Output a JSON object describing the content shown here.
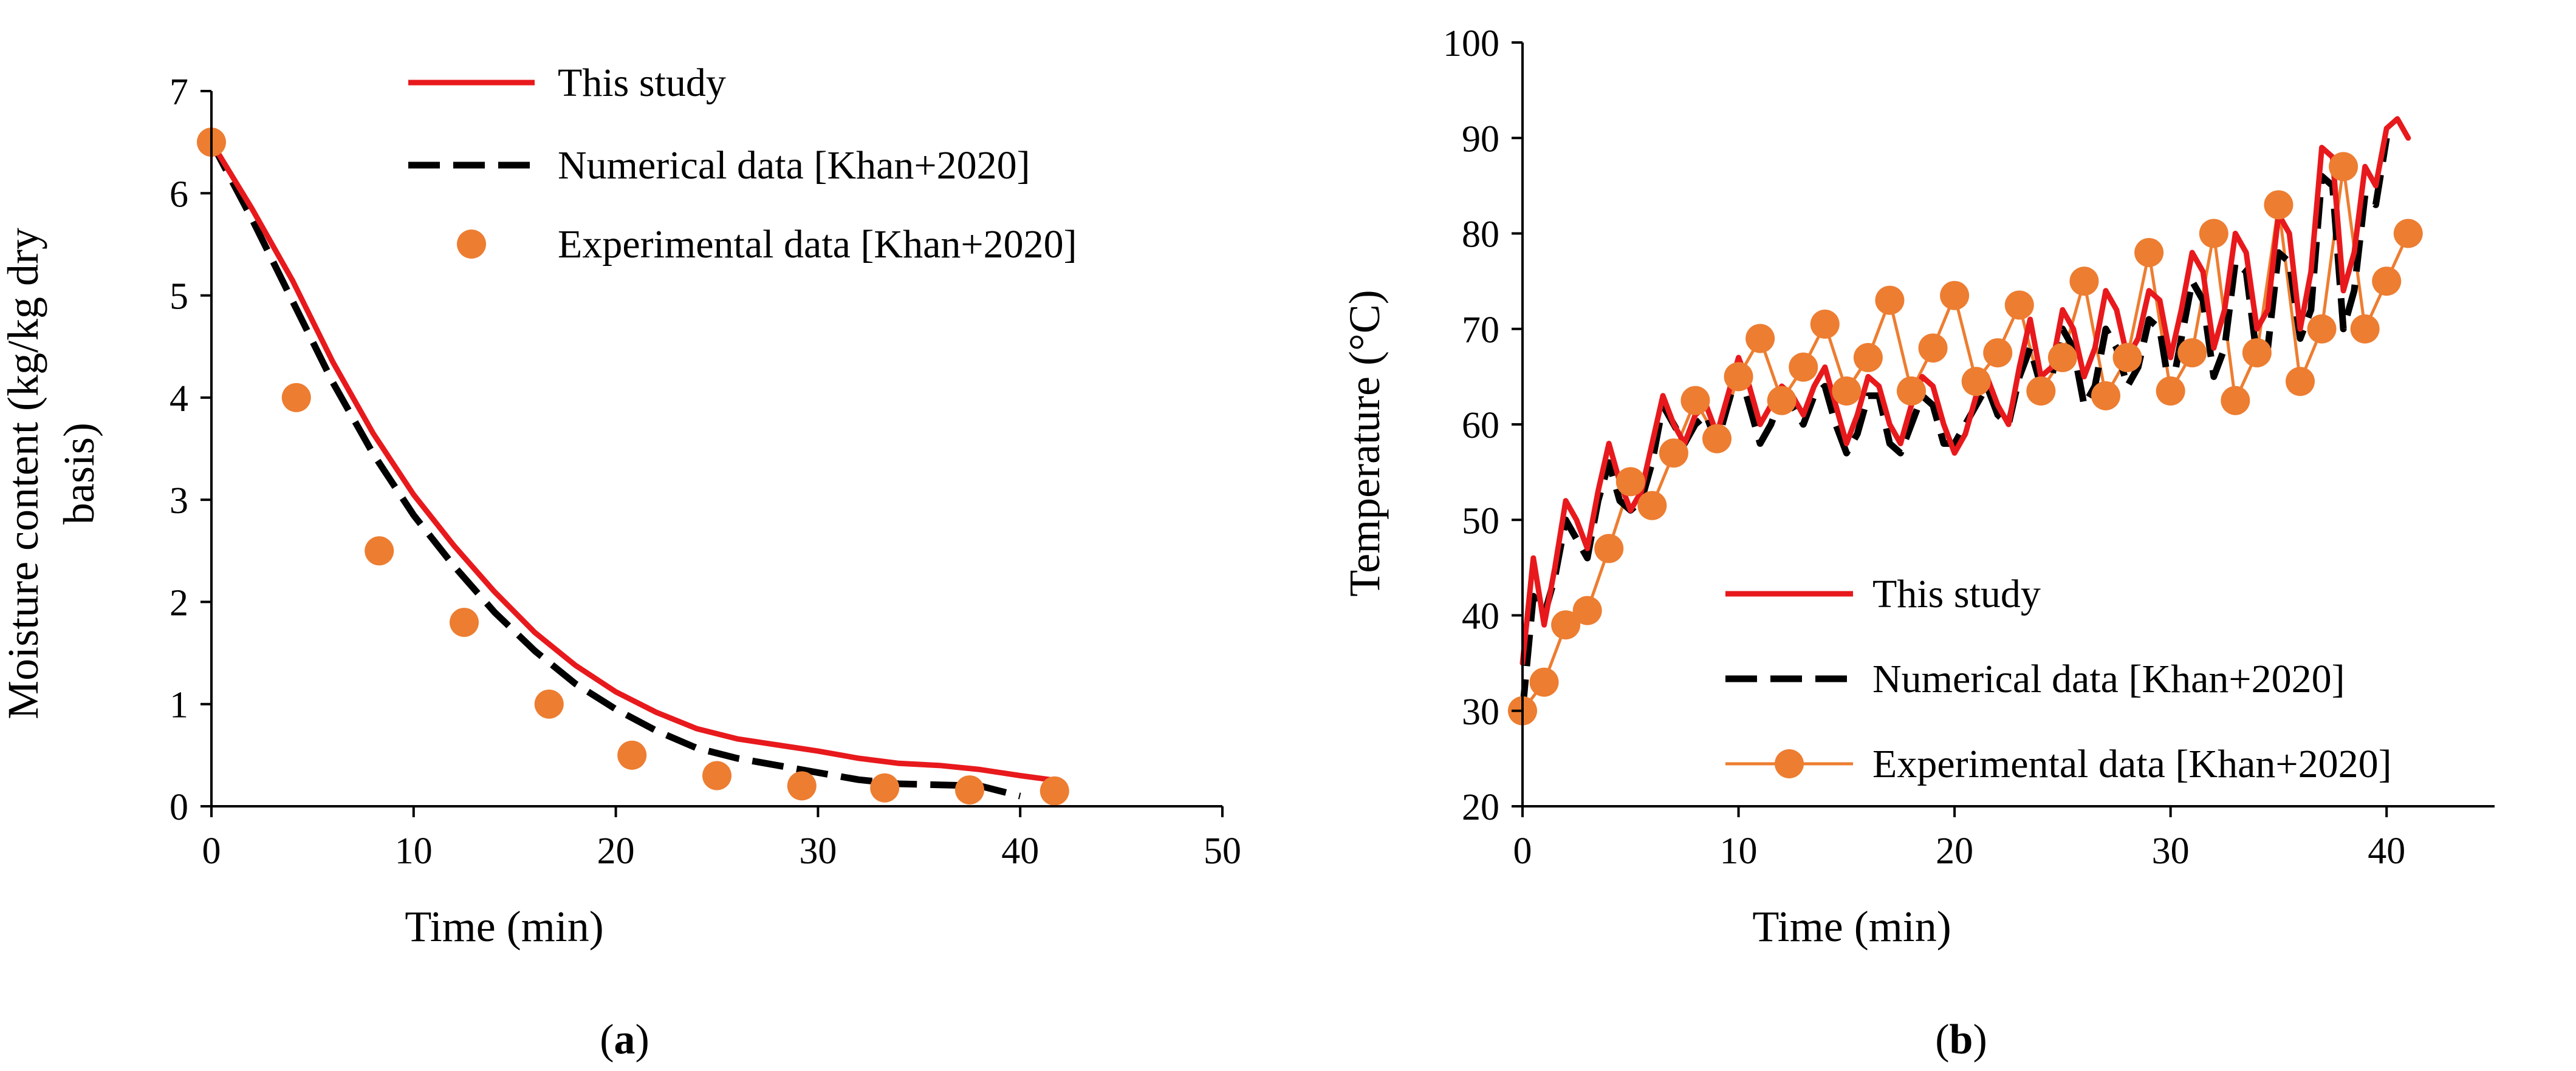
{
  "colors": {
    "this_study": "#e8191c",
    "numerical": "#000000",
    "experimental": "#ed7d31",
    "axis": "#000000"
  },
  "chart_data": [
    {
      "type": "line",
      "panel": "a",
      "panel_label": "(a)",
      "panel_label_parts": {
        "open": "(",
        "letter": "a",
        "close": ")"
      },
      "xlabel": "Time (min)",
      "ylabel_lines": [
        "Moisture content (kg/kg dry",
        "basis)"
      ],
      "xlim": [
        0,
        50
      ],
      "ylim": [
        0,
        7
      ],
      "xticks": [
        0,
        10,
        20,
        30,
        40,
        50
      ],
      "yticks": [
        0,
        1,
        2,
        3,
        4,
        5,
        6,
        7
      ],
      "grid": false,
      "legend_position": "top-right",
      "series": [
        {
          "name": "This study",
          "style": "solid-line",
          "color": "#e8191c",
          "x": [
            0,
            2,
            4,
            6,
            8,
            10,
            12,
            14,
            16,
            18,
            20,
            22,
            24,
            26,
            28,
            30,
            32,
            34,
            36,
            38,
            40,
            41.5
          ],
          "y": [
            6.5,
            5.85,
            5.15,
            4.35,
            3.65,
            3.05,
            2.55,
            2.1,
            1.7,
            1.38,
            1.12,
            0.92,
            0.76,
            0.66,
            0.6,
            0.54,
            0.47,
            0.42,
            0.4,
            0.36,
            0.3,
            0.26
          ]
        },
        {
          "name": "Numerical data [Khan+2020]",
          "style": "dashed-line",
          "color": "#000000",
          "x": [
            0,
            2,
            4,
            6,
            8,
            10,
            12,
            14,
            16,
            18,
            20,
            22,
            24,
            26,
            28,
            30,
            32,
            34,
            36,
            38,
            39,
            40
          ],
          "y": [
            6.5,
            5.75,
            4.95,
            4.15,
            3.45,
            2.85,
            2.35,
            1.9,
            1.52,
            1.2,
            0.95,
            0.74,
            0.57,
            0.47,
            0.4,
            0.33,
            0.26,
            0.22,
            0.21,
            0.2,
            0.15,
            0.1
          ]
        },
        {
          "name": "Experimental data [Khan+2020]",
          "style": "markers",
          "color": "#ed7d31",
          "x": [
            0,
            4.2,
            8.3,
            12.5,
            16.7,
            20.8,
            25,
            29.2,
            33.3,
            37.5,
            41.7
          ],
          "y": [
            6.5,
            4.0,
            2.5,
            1.8,
            1.0,
            0.5,
            0.3,
            0.2,
            0.18,
            0.16,
            0.15
          ]
        }
      ]
    },
    {
      "type": "line",
      "panel": "b",
      "panel_label": "(b)",
      "panel_label_parts": {
        "open": "(",
        "letter": "b",
        "close": ")"
      },
      "xlabel": "Time (min)",
      "ylabel_lines": [
        "Temperature (°C)"
      ],
      "xlim": [
        0,
        45
      ],
      "ylim": [
        20,
        100
      ],
      "xticks": [
        0,
        10,
        20,
        30,
        40
      ],
      "yticks": [
        20,
        30,
        40,
        50,
        60,
        70,
        80,
        90,
        100
      ],
      "grid": false,
      "legend_position": "bottom-right",
      "series": [
        {
          "name": "This study",
          "style": "solid-line",
          "color": "#e8191c",
          "x": [
            0,
            0.5,
            1,
            1.5,
            2,
            2.5,
            3,
            3.5,
            4,
            4.5,
            5,
            5.5,
            6,
            6.5,
            7,
            7.5,
            8,
            8.5,
            9,
            9.5,
            10,
            10.5,
            11,
            11.5,
            12,
            12.5,
            13,
            13.5,
            14,
            14.5,
            15,
            15.5,
            16,
            16.5,
            17,
            17.5,
            18,
            18.5,
            19,
            19.5,
            20,
            20.5,
            21,
            21.5,
            22,
            22.5,
            23,
            23.5,
            24,
            24.5,
            25,
            25.5,
            26,
            26.5,
            27,
            27.5,
            28,
            28.5,
            29,
            29.5,
            30,
            30.5,
            31,
            31.5,
            32,
            32.5,
            33,
            33.5,
            34,
            34.5,
            35,
            35.5,
            36,
            36.5,
            37,
            37.5,
            38,
            38.5,
            39,
            39.5,
            40,
            40.5,
            41
          ],
          "y": [
            35,
            46,
            39,
            45,
            52,
            50,
            47,
            53,
            58,
            54,
            51,
            53,
            58,
            63,
            60,
            58,
            61,
            62,
            59,
            63,
            67,
            64,
            60,
            62,
            64,
            63,
            61,
            64,
            66,
            62,
            58,
            61,
            65,
            64,
            60,
            58,
            62,
            65,
            64,
            60,
            57,
            59,
            63,
            65,
            62,
            60,
            66,
            71,
            65,
            66,
            72,
            70,
            65,
            68,
            74,
            72,
            67,
            69,
            74,
            73,
            67,
            72,
            78,
            76,
            68,
            72,
            80,
            78,
            70,
            72,
            82,
            80,
            70,
            76,
            89,
            88,
            74,
            78,
            87,
            85,
            91,
            92,
            90
          ],
          "stroke_width": 12
        },
        {
          "name": "Numerical data [Khan+2020]",
          "style": "dashed-line",
          "color": "#000000",
          "x": [
            0,
            0.5,
            1,
            1.5,
            2,
            2.5,
            3,
            3.5,
            4,
            4.5,
            5,
            5.5,
            6,
            6.5,
            7,
            7.5,
            8,
            8.5,
            9,
            9.5,
            10,
            10.5,
            11,
            11.5,
            12,
            12.5,
            13,
            13.5,
            14,
            14.5,
            15,
            15.5,
            16,
            16.5,
            17,
            17.5,
            18,
            18.5,
            19,
            19.5,
            20,
            20.5,
            21,
            21.5,
            22,
            22.5,
            23,
            23.5,
            24,
            24.5,
            25,
            25.5,
            26,
            26.5,
            27,
            27.5,
            28,
            28.5,
            29,
            29.5,
            30,
            30.5,
            31,
            31.5,
            32,
            32.5,
            33,
            33.5,
            34,
            34.5,
            35,
            35.5,
            36,
            36.5,
            37,
            37.5,
            38,
            38.5,
            39,
            39.5,
            40
          ],
          "y": [
            30,
            42,
            40,
            44,
            50,
            48,
            46,
            52,
            56,
            52,
            51,
            52,
            56,
            62,
            60,
            58,
            60,
            61,
            58,
            62,
            66,
            62,
            58,
            60,
            63,
            62,
            60,
            63,
            64,
            60,
            57,
            59,
            63,
            63,
            58,
            57,
            60,
            63,
            62,
            58,
            58,
            60,
            62,
            64,
            61,
            60,
            65,
            68,
            64,
            65,
            70,
            68,
            62,
            64,
            70,
            68,
            64,
            66,
            71,
            70,
            63,
            69,
            75,
            73,
            65,
            68,
            77,
            76,
            67,
            68,
            78,
            77,
            69,
            72,
            86,
            85,
            70,
            74,
            84,
            83,
            90
          ]
        },
        {
          "name": "Experimental data [Khan+2020]",
          "style": "line-markers",
          "color": "#ed7d31",
          "x": [
            0,
            1,
            2,
            3,
            4,
            5,
            6,
            7,
            8,
            9,
            10,
            11,
            12,
            13,
            14,
            15,
            16,
            17,
            18,
            19,
            20,
            21,
            22,
            23,
            24,
            25,
            26,
            27,
            28,
            29,
            30,
            31,
            32,
            33,
            34,
            35,
            36,
            37,
            38,
            39,
            40,
            41
          ],
          "y": [
            30,
            33,
            39,
            40.5,
            47,
            54,
            51.5,
            57,
            62.5,
            58.5,
            65,
            69,
            62.5,
            66,
            70.5,
            63.5,
            67,
            73,
            63.5,
            68,
            73.5,
            64.5,
            67.5,
            72.5,
            63.5,
            67,
            75,
            63,
            67,
            78,
            63.5,
            67.5,
            80,
            62.5,
            67.5,
            83,
            64.5,
            70,
            87,
            70,
            75,
            80
          ]
        }
      ]
    }
  ]
}
